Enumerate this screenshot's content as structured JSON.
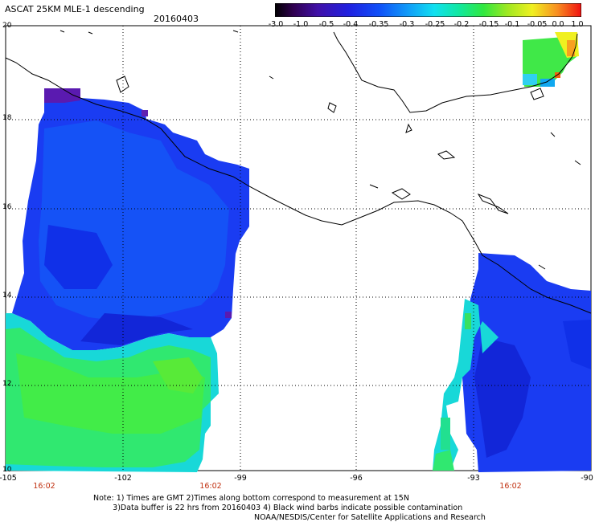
{
  "header": {
    "title": "ASCAT 25KM MLE-1 descending",
    "date": "20160403"
  },
  "colorbar": {
    "ticks": [
      "-3.0",
      "-1.0",
      "-0.5",
      "-0.4",
      "-0.35",
      "-0.3",
      "-0.25",
      "-0.2",
      "-0.15",
      "-0.1",
      "-0.05",
      "0.0",
      "1.0"
    ],
    "colors": [
      "#3a0060",
      "#4a10a0",
      "#2020d0",
      "#1040f0",
      "#1070f8",
      "#10a8f0",
      "#10d8e8",
      "#20e8a0",
      "#30e840",
      "#90e820",
      "#e8e820",
      "#f8a020",
      "#f02010"
    ]
  },
  "axes": {
    "lat_labels": [
      "20",
      "18",
      "16",
      "14",
      "12",
      "10"
    ],
    "lon_labels": [
      "-105",
      "-102",
      "-99",
      "-96",
      "-93",
      "-90"
    ],
    "time_labels": [
      "16:02",
      "16:02",
      "16:02"
    ]
  },
  "footer": {
    "note_line1": "Note: 1) Times are GMT 2)Times along bottom correspond to measurement at 15N",
    "note_line2": "3)Data buffer is 22 hrs from 20160403 4) Black wind barbs indicate possible contamination",
    "credit": "NOAA/NESDIS/Center for Satellite Applications and Research"
  }
}
